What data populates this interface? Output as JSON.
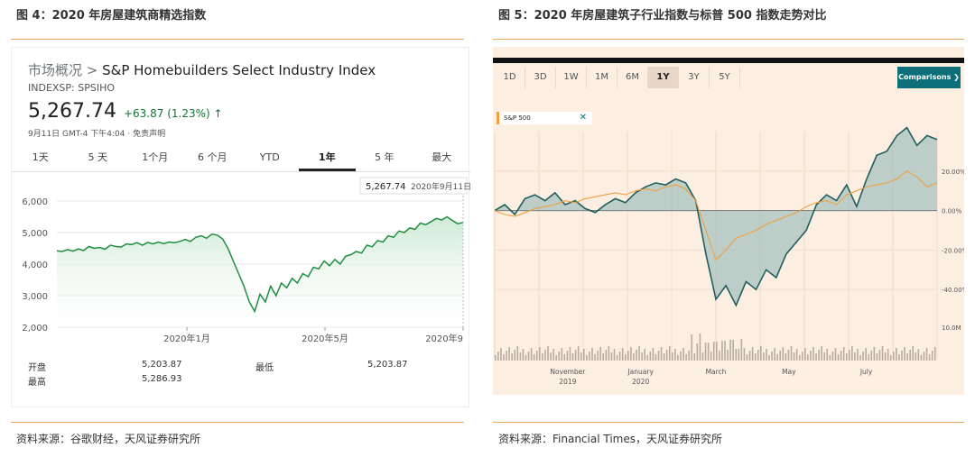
{
  "fig4_title": "图 4：2020 年房屋建筑商精选指数",
  "fig5_title": "图 5：2020 年房屋建筑子行业指数与标普 500 指数走势对比",
  "source_left": "资料来源：谷歌财经，天风证券研究所",
  "source_right": "资料来源：Financial Times，天风证券研究所",
  "left": {
    "crumb_prefix": "市场概况 >",
    "crumb_name": "S&P Homebuilders Select Industry Index",
    "ticker": "INDEXSP: SPSIHO",
    "price": "5,267.74",
    "change": "+63.87 (1.23%) ↑",
    "meta": "9月11日 GMT-4 下午4:04 · 免责声明",
    "ranges": [
      "1天",
      "5 天",
      "1个月",
      "6 个月",
      "YTD",
      "1年",
      "5 年",
      "最大"
    ],
    "active_range": 5,
    "tooltip_value": "5,267.74",
    "tooltip_date": "2020年9月11日",
    "stats": {
      "open_label": "开盘",
      "open_value": "5,203.87",
      "low_label": "最低",
      "low_value": "5,203.87",
      "high_label": "最高",
      "high_value": "5,286.93"
    },
    "colors": {
      "line": "#1e8e3e",
      "fill": "#ceead6"
    }
  },
  "right": {
    "timeframes": [
      "1D",
      "3D",
      "1W",
      "1M",
      "6M",
      "1Y",
      "3Y",
      "5Y"
    ],
    "active_timeframe": 5,
    "comparisons_label": "Comparisons ❯",
    "legend_label": "S&P 500",
    "colors": {
      "homebuilders": "#1f5f5f",
      "fill": "#a7c2be",
      "sp500": "#f0a040",
      "volume": "#b8aca0"
    }
  },
  "chart_data": [
    {
      "type": "area",
      "title": "",
      "y_ticks": [
        "2,000",
        "3,000",
        "4,000",
        "5,000",
        "6,000"
      ],
      "ylim": [
        2000,
        6000
      ],
      "x_ticks": [
        {
          "label": "2020年1月",
          "x": 0.32
        },
        {
          "label": "2020年5月",
          "x": 0.66
        },
        {
          "label": "2020年9",
          "x": 1.0
        }
      ],
      "grid": true,
      "series": [
        {
          "values": [
            4420,
            4400,
            4460,
            4410,
            4480,
            4430,
            4560,
            4500,
            4530,
            4470,
            4600,
            4560,
            4540,
            4640,
            4620,
            4680,
            4600,
            4690,
            4640,
            4700,
            4650,
            4700,
            4680,
            4720,
            4780,
            4720,
            4850,
            4900,
            4820,
            4950,
            4920,
            4800,
            4500,
            4100,
            3700,
            3300,
            2800,
            2500,
            3050,
            2800,
            3300,
            3000,
            3400,
            3250,
            3550,
            3400,
            3700,
            3600,
            3900,
            3850,
            4100,
            3950,
            4150,
            4000,
            4250,
            4300,
            4400,
            4350,
            4600,
            4550,
            4750,
            4700,
            4900,
            4850,
            5050,
            5000,
            5150,
            5100,
            5300,
            5250,
            5350,
            5450,
            5400,
            5500,
            5380,
            5280,
            5320
          ]
        }
      ]
    },
    {
      "type": "area",
      "title": "",
      "y_ticks": [
        "20.00%",
        "0.00%",
        "-20.00%",
        "-40.00%"
      ],
      "ylim": [
        -55,
        40
      ],
      "x_ticks": [
        {
          "label": "November",
          "sub": "2019",
          "x": 0.165
        },
        {
          "label": "January",
          "sub": "2020",
          "x": 0.33
        },
        {
          "label": "March",
          "sub": "",
          "x": 0.5
        },
        {
          "label": "May",
          "sub": "",
          "x": 0.665
        },
        {
          "label": "July",
          "sub": "",
          "x": 0.84
        }
      ],
      "volume_label": "10.0M",
      "series": [
        {
          "name": "S&P 500",
          "values": [
            0,
            -2,
            -3,
            -1,
            1,
            2,
            3,
            5,
            4,
            6,
            7,
            8,
            9,
            8,
            10,
            11,
            10,
            12,
            13,
            11,
            5,
            -10,
            -25,
            -20,
            -14,
            -12,
            -10,
            -7,
            -5,
            -3,
            -1,
            2,
            4,
            5,
            3,
            8,
            10,
            12,
            13,
            14,
            16,
            20,
            17,
            12,
            14
          ]
        },
        {
          "values": [
            0,
            3,
            -2,
            6,
            8,
            5,
            9,
            3,
            5,
            1,
            -1,
            3,
            6,
            4,
            9,
            12,
            14,
            13,
            16,
            14,
            5,
            -22,
            -45,
            -38,
            -48,
            -36,
            -40,
            -30,
            -34,
            -22,
            -16,
            -10,
            3,
            8,
            5,
            13,
            2,
            16,
            28,
            30,
            38,
            42,
            33,
            38,
            36
          ]
        }
      ]
    }
  ]
}
